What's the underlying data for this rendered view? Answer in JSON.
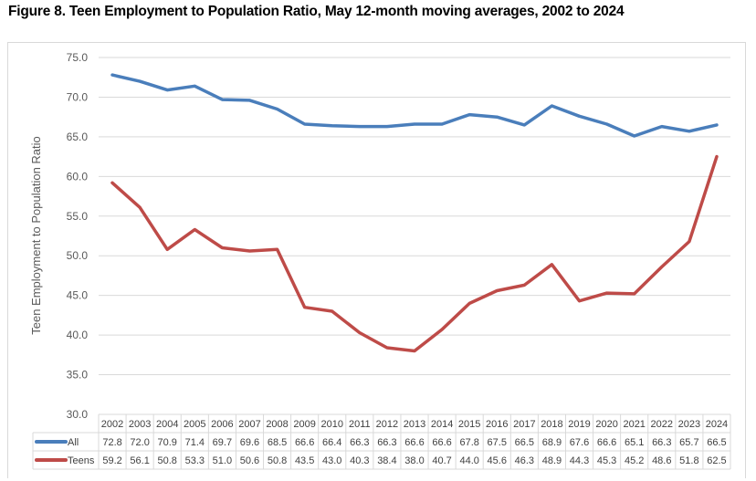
{
  "chart_data": {
    "type": "line",
    "title": "Figure 8. Teen Employment to Population Ratio, May 12-month moving averages, 2002 to 2024",
    "xlabel": "",
    "ylabel": "Teen Employment to Population Ratio",
    "ylim": [
      30.0,
      75.0
    ],
    "yticks": [
      "30.0",
      "35.0",
      "40.0",
      "45.0",
      "50.0",
      "55.0",
      "60.0",
      "65.0",
      "70.0",
      "75.0"
    ],
    "ytick_values": [
      30,
      35,
      40,
      45,
      50,
      55,
      60,
      65,
      70,
      75
    ],
    "grid": true,
    "legend": "data-table",
    "categories": [
      "2002",
      "2003",
      "2004",
      "2005",
      "2006",
      "2007",
      "2008",
      "2009",
      "2010",
      "2011",
      "2012",
      "2013",
      "2014",
      "2015",
      "2016",
      "2017",
      "2018",
      "2019",
      "2020",
      "2021",
      "2022",
      "2023",
      "2024"
    ],
    "series": [
      {
        "name": "All",
        "color": "#4a7ebb",
        "values": [
          72.8,
          72.0,
          70.9,
          71.4,
          69.7,
          69.6,
          68.5,
          66.6,
          66.4,
          66.3,
          66.3,
          66.6,
          66.6,
          67.8,
          67.5,
          66.5,
          68.9,
          67.6,
          66.6,
          65.1,
          66.3,
          65.7,
          66.5
        ]
      },
      {
        "name": "Teens",
        "color": "#be4b48",
        "values": [
          59.2,
          56.1,
          50.8,
          53.3,
          51.0,
          50.6,
          50.8,
          43.5,
          43.0,
          40.3,
          38.4,
          38.0,
          40.7,
          44.0,
          45.6,
          46.3,
          48.9,
          44.3,
          45.3,
          45.2,
          48.6,
          51.8,
          62.5
        ]
      }
    ]
  }
}
